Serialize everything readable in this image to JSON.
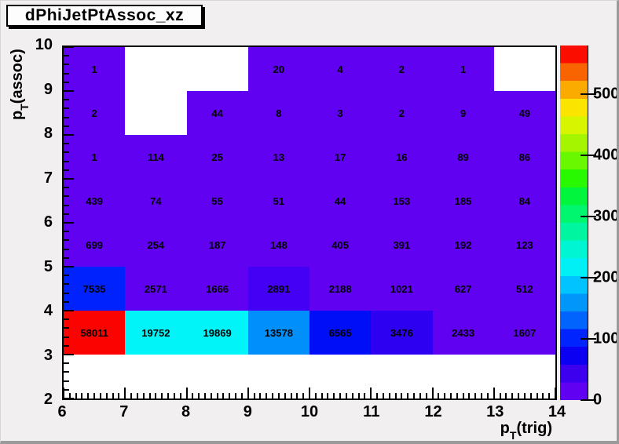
{
  "title": "dPhiJetPtAssoc_xz",
  "axes": {
    "x": {
      "title_prefix": "p",
      "title_sub": "T",
      "title_rest": "(trig)",
      "tick_labels": [
        "6",
        "7",
        "8",
        "9",
        "10",
        "11",
        "12",
        "13",
        "14"
      ],
      "min": 6,
      "max": 14,
      "minor_per_major": 10
    },
    "y": {
      "title_prefix": "p",
      "title_sub": "T",
      "title_rest": "(assoc)",
      "tick_labels": [
        "2",
        "3",
        "4",
        "5",
        "6",
        "7",
        "8",
        "9",
        "10"
      ],
      "min": 2,
      "max": 10,
      "minor_per_major": 5
    }
  },
  "palette": {
    "zmax": 580,
    "tick_values": [
      0,
      100,
      200,
      300,
      400,
      500
    ],
    "tick_labels": [
      "0",
      "100",
      "200",
      "300",
      "400",
      "500"
    ],
    "colors_bottom_to_top": [
      "#6101f2",
      "#3c00ee",
      "#0b00f2",
      "#0024fd",
      "#0064fd",
      "#0096fa",
      "#00c3ff",
      "#00f0f5",
      "#00f5d2",
      "#00f5a0",
      "#00f66e",
      "#00f53c",
      "#28f800",
      "#69f800",
      "#a5f500",
      "#d8f500",
      "#fbe400",
      "#fbaa00",
      "#fa6400",
      "#fb0d00"
    ]
  },
  "chart_data": {
    "type": "heatmap",
    "title": "dPhiJetPtAssoc_xz",
    "xlabel": "pT(trig)",
    "ylabel": "pT(assoc)",
    "x_bin_edges": [
      6,
      7,
      8,
      9,
      10,
      11,
      12,
      13,
      14
    ],
    "y_bin_edges": [
      2,
      3,
      4,
      5,
      6,
      7,
      8,
      9,
      10
    ],
    "legend_position": "right-palette",
    "grid": false,
    "base_color": "#6101f2",
    "rows_top_to_bottom": [
      {
        "y_range": "9-10",
        "cells": [
          {
            "v": "1",
            "c": "#6101f2"
          },
          null,
          null,
          {
            "v": "20",
            "c": "#6101f2"
          },
          {
            "v": "4",
            "c": "#6101f2"
          },
          {
            "v": "2",
            "c": "#6101f2"
          },
          {
            "v": "1",
            "c": "#6101f2"
          },
          null
        ]
      },
      {
        "y_range": "8-9",
        "cells": [
          {
            "v": "2",
            "c": "#6101f2"
          },
          null,
          {
            "v": "44",
            "c": "#6101f2"
          },
          {
            "v": "8",
            "c": "#6101f2"
          },
          {
            "v": "3",
            "c": "#6101f2"
          },
          {
            "v": "2",
            "c": "#6101f2"
          },
          {
            "v": "9",
            "c": "#6101f2"
          },
          {
            "v": "49",
            "c": "#6101f2"
          }
        ]
      },
      {
        "y_range": "7-8",
        "cells": [
          {
            "v": "1",
            "c": "#6101f2"
          },
          {
            "v": "114",
            "c": "#6101f2"
          },
          {
            "v": "25",
            "c": "#6101f2"
          },
          {
            "v": "13",
            "c": "#6101f2"
          },
          {
            "v": "17",
            "c": "#6101f2"
          },
          {
            "v": "16",
            "c": "#6101f2"
          },
          {
            "v": "89",
            "c": "#6101f2"
          },
          {
            "v": "86",
            "c": "#6101f2"
          }
        ]
      },
      {
        "y_range": "6-7",
        "cells": [
          {
            "v": "439",
            "c": "#6101f2"
          },
          {
            "v": "74",
            "c": "#6101f2"
          },
          {
            "v": "55",
            "c": "#6101f2"
          },
          {
            "v": "51",
            "c": "#6101f2"
          },
          {
            "v": "44",
            "c": "#6101f2"
          },
          {
            "v": "153",
            "c": "#6101f2"
          },
          {
            "v": "185",
            "c": "#6101f2"
          },
          {
            "v": "84",
            "c": "#6101f2"
          }
        ]
      },
      {
        "y_range": "5-6",
        "cells": [
          {
            "v": "699",
            "c": "#6101f2"
          },
          {
            "v": "254",
            "c": "#6101f2"
          },
          {
            "v": "187",
            "c": "#6101f2"
          },
          {
            "v": "148",
            "c": "#6101f2"
          },
          {
            "v": "405",
            "c": "#6101f2"
          },
          {
            "v": "391",
            "c": "#6101f2"
          },
          {
            "v": "192",
            "c": "#6101f2"
          },
          {
            "v": "123",
            "c": "#6101f2"
          }
        ]
      },
      {
        "y_range": "4-5",
        "cells": [
          {
            "v": "7535",
            "c": "#0023fd"
          },
          {
            "v": "2571",
            "c": "#6101f2"
          },
          {
            "v": "1666",
            "c": "#6101f2"
          },
          {
            "v": "2891",
            "c": "#4400f5"
          },
          {
            "v": "2188",
            "c": "#6101f2"
          },
          {
            "v": "1021",
            "c": "#6101f2"
          },
          {
            "v": "627",
            "c": "#6101f2"
          },
          {
            "v": "512",
            "c": "#6101f2"
          }
        ]
      },
      {
        "y_range": "3-4",
        "cells": [
          {
            "v": "58011",
            "c": "#fb0300"
          },
          {
            "v": "19752",
            "c": "#00f4f8"
          },
          {
            "v": "19869",
            "c": "#00f4f8"
          },
          {
            "v": "13578",
            "c": "#008ffb"
          },
          {
            "v": "6565",
            "c": "#000ef8"
          },
          {
            "v": "3476",
            "c": "#2e00f2"
          },
          {
            "v": "2433",
            "c": "#6101f2"
          },
          {
            "v": "1607",
            "c": "#6101f2"
          }
        ]
      },
      {
        "y_range": "2-3",
        "cells": [
          null,
          null,
          null,
          null,
          null,
          null,
          null,
          null
        ]
      }
    ]
  }
}
